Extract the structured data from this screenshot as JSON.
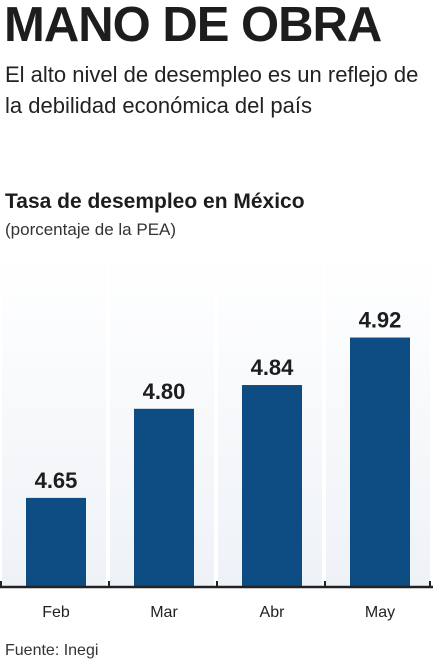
{
  "headline": "MANO DE OBRA",
  "deck": "El alto nivel de desempleo es un reflejo de la debilidad económica del país",
  "source": "Fuente: Inegi",
  "colors": {
    "bar": "#0e4c84",
    "column_bg": "#eef2f7",
    "axis": "#222222"
  },
  "chart_data": {
    "type": "bar",
    "title": "Tasa de desempleo en México",
    "subtitle": "(porcentaje de la PEA)",
    "categories": [
      "Feb",
      "Mar",
      "Abr",
      "May"
    ],
    "values": [
      4.65,
      4.8,
      4.84,
      4.92
    ],
    "data_labels": [
      "4.65",
      "4.80",
      "4.84",
      "4.92"
    ],
    "ylim": [
      4.5,
      5.0
    ],
    "grid": false,
    "legend": "none"
  }
}
